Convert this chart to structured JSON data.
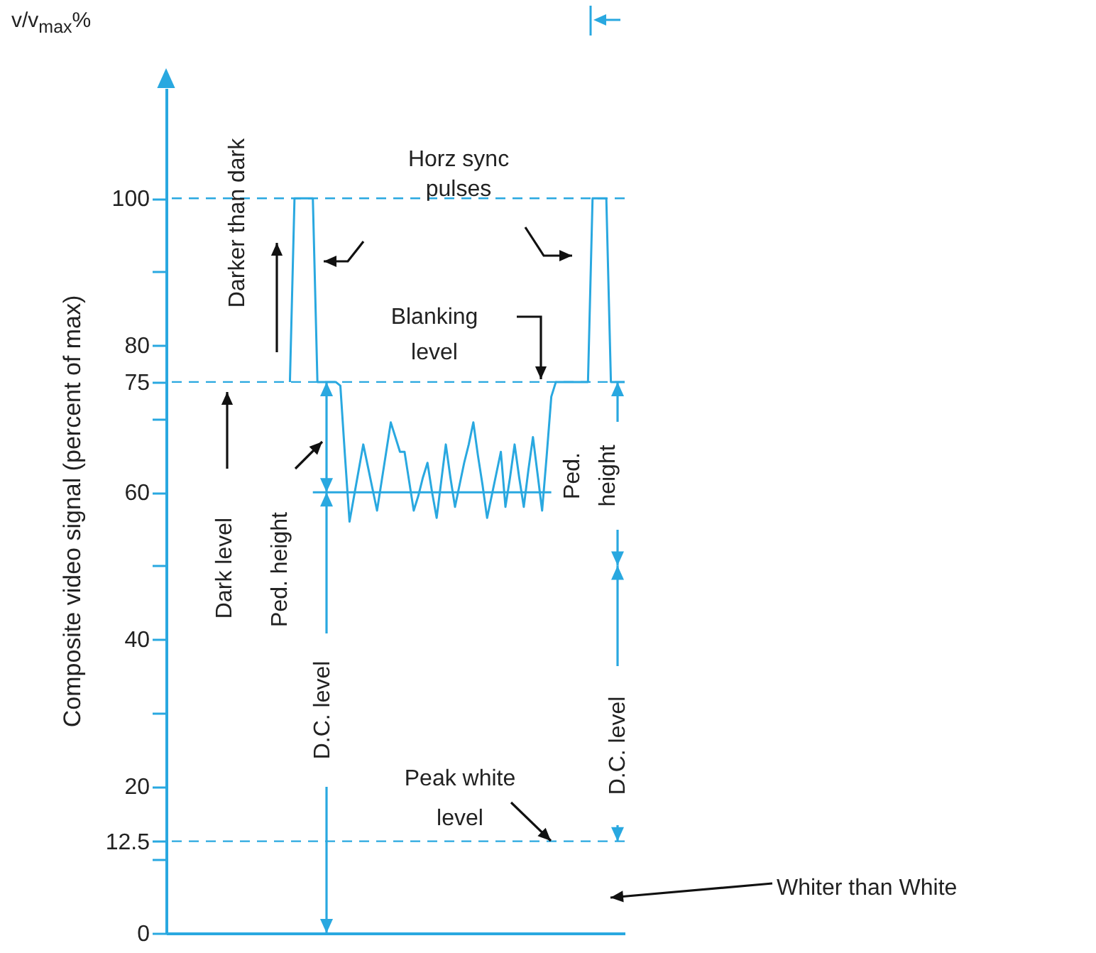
{
  "chart_data": {
    "type": "line",
    "ylabel": "Composite video signal (percent of max)",
    "tick_labels": "y",
    "grid": false,
    "marker": "none",
    "line_style": "solid",
    "categories": [
      null,
      null,
      null,
      null,
      null,
      null,
      null,
      null,
      null,
      null,
      null,
      null,
      null,
      null,
      null,
      null,
      null,
      null,
      null,
      null,
      null,
      null,
      null,
      null,
      null,
      null,
      null,
      null,
      null,
      null,
      null,
      null,
      null,
      null,
      null,
      null,
      null,
      null,
      null,
      null,
      null,
      null,
      null,
      null,
      null,
      null,
      null,
      null,
      null,
      null,
      null,
      null,
      null,
      null,
      null,
      null,
      null,
      null,
      null,
      null,
      null,
      null,
      null,
      null,
      null,
      null,
      null,
      null,
      null,
      null,
      null,
      null,
      null,
      null,
      null,
      null,
      null,
      null,
      null,
      null,
      null,
      null,
      null,
      null,
      null,
      null,
      null,
      null,
      null,
      null,
      null,
      null,
      null,
      null,
      null,
      null,
      null,
      null,
      null,
      null,
      null
    ],
    "ylim": [
      0,
      115
    ],
    "yticks": [
      0,
      {
        "value": 10,
        "label": null
      },
      12.5,
      20,
      {
        "value": 30,
        "label": null
      },
      40,
      {
        "value": 50,
        "label": null
      },
      60,
      {
        "value": 70,
        "label": null
      },
      75,
      80,
      {
        "value": 90,
        "label": null
      },
      100
    ],
    "series": [
      {
        "color": "#29a8e0",
        "values": [
          null,
          null,
          null,
          null,
          null,
          null,
          null,
          null,
          null,
          null,
          null,
          null,
          null,
          null,
          null,
          null,
          null,
          null,
          null,
          null,
          null,
          null,
          null,
          null,
          null,
          null,
          null,
          75,
          100,
          100,
          100,
          100,
          100,
          75,
          75,
          75,
          75,
          75,
          74.5,
          65,
          56,
          59.5,
          63,
          66.5,
          63.5,
          60.5,
          57.5,
          61.5,
          65.5,
          69.5,
          67.5,
          65.5,
          65.5,
          61.5,
          57.5,
          59.5,
          62,
          64,
          60,
          56.5,
          61.5,
          66.5,
          62,
          58,
          61,
          64,
          66.5,
          69.5,
          65,
          61,
          56.5,
          59.5,
          62.5,
          65.5,
          58,
          62,
          66.5,
          62,
          58,
          63,
          67.5,
          62.5,
          57.5,
          65,
          73,
          75,
          75,
          75,
          75,
          75,
          75,
          75,
          75,
          100,
          100,
          100,
          100,
          75,
          75,
          75,
          75
        ]
      },
      {
        "color": "#29a8e0",
        "values": [
          null,
          null,
          null,
          null,
          null,
          null,
          null,
          null,
          null,
          null,
          null,
          null,
          null,
          null,
          null,
          null,
          null,
          null,
          null,
          null,
          null,
          null,
          null,
          null,
          null,
          null,
          null,
          null,
          null,
          null,
          null,
          null,
          60,
          60,
          60,
          60,
          60,
          60,
          60,
          60,
          60,
          60,
          60,
          60,
          60,
          60,
          60,
          60,
          60,
          60,
          60,
          60,
          60,
          60,
          60,
          60,
          60,
          60,
          60,
          60,
          60,
          60,
          60,
          60,
          60,
          60,
          60,
          60,
          60,
          60,
          60,
          60,
          60,
          60,
          60,
          60,
          60,
          60,
          60,
          60,
          60,
          60,
          60,
          60,
          60,
          null,
          null,
          null,
          null,
          null,
          null,
          null,
          null,
          null,
          null,
          null,
          null,
          null,
          null,
          null,
          null
        ]
      }
    ],
    "ref_lines": [
      {
        "axis": "y",
        "value": 100,
        "color": "#29a8e0",
        "line_style": "dashed"
      },
      {
        "axis": "y",
        "value": 75,
        "color": "#29a8e0",
        "line_style": "dashed"
      },
      {
        "axis": "y",
        "value": 12.5,
        "color": "#29a8e0",
        "line_style": "dashed"
      }
    ],
    "annotations": [
      "v/v$_{max}$%",
      "Horz sync\npulses",
      "Darker than dark",
      "Blanking\nlevel",
      "Dark level",
      "Ped. height",
      "D.C. level",
      "Ped.\nheight",
      "D.C. level",
      "Peak white\nlevel",
      "Whiter than White"
    ]
  }
}
